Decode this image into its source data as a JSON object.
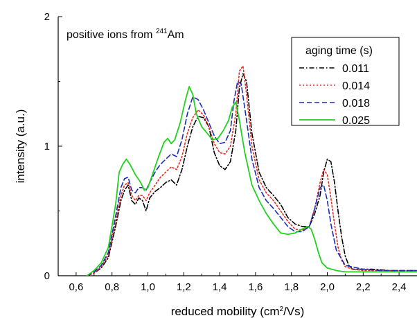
{
  "chart_data": {
    "type": "line",
    "title": "",
    "annotation": {
      "prefix": "positive ions from ",
      "superscript": "241",
      "suffix": "Am"
    },
    "xlabel": {
      "prefix": "reduced mobility (cm",
      "superscript": "2",
      "suffix": "/Vs)"
    },
    "ylabel": "intensity (a.u.)",
    "xlim": [
      0.5,
      2.5
    ],
    "ylim": [
      0,
      2
    ],
    "x_ticks": [
      0.6,
      0.8,
      1.0,
      1.2,
      1.4,
      1.6,
      1.8,
      2.0,
      2.2,
      2.4
    ],
    "x_tick_labels": [
      "0,6",
      "0,8",
      "1,0",
      "1,2",
      "1,4",
      "1,6",
      "1,8",
      "2,0",
      "2,2",
      "2,4"
    ],
    "y_ticks": [
      0,
      1,
      2
    ],
    "y_tick_labels": [
      "0",
      "1",
      "2"
    ],
    "grid": false,
    "legend": {
      "title": "aging time (s)",
      "placement": "top-right"
    },
    "series": [
      {
        "name": "0.011",
        "color": "#000000",
        "style": "dashdot",
        "x": [
          0.66,
          0.7,
          0.74,
          0.78,
          0.82,
          0.85,
          0.87,
          0.89,
          0.91,
          0.93,
          0.95,
          0.97,
          0.99,
          1.01,
          1.04,
          1.07,
          1.1,
          1.13,
          1.16,
          1.19,
          1.22,
          1.25,
          1.28,
          1.31,
          1.34,
          1.37,
          1.4,
          1.43,
          1.46,
          1.49,
          1.51,
          1.53,
          1.55,
          1.58,
          1.62,
          1.66,
          1.7,
          1.74,
          1.78,
          1.82,
          1.86,
          1.9,
          1.93,
          1.96,
          1.98,
          2.0,
          2.02,
          2.04,
          2.06,
          2.08,
          2.1,
          2.12,
          2.14,
          2.18,
          2.25,
          2.35,
          2.5
        ],
        "y": [
          0.0,
          0.02,
          0.06,
          0.14,
          0.38,
          0.58,
          0.66,
          0.7,
          0.58,
          0.55,
          0.6,
          0.58,
          0.5,
          0.6,
          0.65,
          0.68,
          0.72,
          0.74,
          0.7,
          0.82,
          1.0,
          1.15,
          1.23,
          1.22,
          1.15,
          0.95,
          0.85,
          0.82,
          0.88,
          1.12,
          1.45,
          1.56,
          1.5,
          1.1,
          0.8,
          0.68,
          0.62,
          0.55,
          0.45,
          0.4,
          0.38,
          0.38,
          0.48,
          0.62,
          0.8,
          0.9,
          0.88,
          0.72,
          0.5,
          0.3,
          0.15,
          0.08,
          0.05,
          0.05,
          0.05,
          0.04,
          0.04
        ]
      },
      {
        "name": "0.014",
        "color": "#e8281e",
        "style": "dotted",
        "x": [
          0.66,
          0.7,
          0.74,
          0.78,
          0.82,
          0.85,
          0.87,
          0.89,
          0.91,
          0.93,
          0.95,
          0.97,
          0.99,
          1.01,
          1.04,
          1.07,
          1.1,
          1.13,
          1.16,
          1.19,
          1.22,
          1.25,
          1.28,
          1.31,
          1.34,
          1.37,
          1.4,
          1.43,
          1.46,
          1.49,
          1.51,
          1.53,
          1.55,
          1.58,
          1.62,
          1.66,
          1.7,
          1.74,
          1.78,
          1.82,
          1.86,
          1.9,
          1.93,
          1.96,
          1.98,
          2.0,
          2.02,
          2.04,
          2.06,
          2.08,
          2.1,
          2.14,
          2.2,
          2.3,
          2.5
        ],
        "y": [
          0.0,
          0.02,
          0.07,
          0.16,
          0.42,
          0.62,
          0.7,
          0.72,
          0.62,
          0.58,
          0.62,
          0.62,
          0.58,
          0.64,
          0.7,
          0.76,
          0.8,
          0.84,
          0.82,
          0.92,
          1.1,
          1.22,
          1.28,
          1.24,
          1.15,
          1.02,
          0.95,
          0.94,
          1.0,
          1.25,
          1.58,
          1.62,
          1.4,
          1.0,
          0.74,
          0.64,
          0.58,
          0.5,
          0.42,
          0.36,
          0.35,
          0.38,
          0.52,
          0.72,
          0.82,
          0.78,
          0.6,
          0.4,
          0.22,
          0.12,
          0.07,
          0.05,
          0.04,
          0.04,
          0.04
        ]
      },
      {
        "name": "0.018",
        "color": "#1c2ab8",
        "style": "dashed",
        "x": [
          0.66,
          0.7,
          0.74,
          0.78,
          0.82,
          0.85,
          0.87,
          0.89,
          0.91,
          0.93,
          0.95,
          0.97,
          0.99,
          1.01,
          1.04,
          1.07,
          1.1,
          1.13,
          1.16,
          1.19,
          1.22,
          1.25,
          1.28,
          1.31,
          1.34,
          1.37,
          1.4,
          1.43,
          1.46,
          1.48,
          1.5,
          1.52,
          1.55,
          1.58,
          1.62,
          1.66,
          1.7,
          1.74,
          1.78,
          1.82,
          1.86,
          1.9,
          1.93,
          1.96,
          1.98,
          2.0,
          2.02,
          2.05,
          2.1,
          2.2,
          2.3,
          2.5
        ],
        "y": [
          0.0,
          0.03,
          0.08,
          0.18,
          0.46,
          0.68,
          0.75,
          0.76,
          0.66,
          0.64,
          0.68,
          0.68,
          0.66,
          0.72,
          0.8,
          0.86,
          0.9,
          0.94,
          0.92,
          1.05,
          1.25,
          1.38,
          1.36,
          1.28,
          1.18,
          1.08,
          1.02,
          1.03,
          1.12,
          1.35,
          1.5,
          1.48,
          1.2,
          0.9,
          0.68,
          0.58,
          0.52,
          0.45,
          0.38,
          0.34,
          0.34,
          0.38,
          0.52,
          0.68,
          0.7,
          0.58,
          0.4,
          0.2,
          0.08,
          0.05,
          0.04,
          0.04
        ]
      },
      {
        "name": "0.025",
        "color": "#22d11e",
        "style": "solid",
        "x": [
          0.66,
          0.7,
          0.74,
          0.78,
          0.82,
          0.84,
          0.86,
          0.88,
          0.9,
          0.93,
          0.96,
          0.98,
          1.0,
          1.03,
          1.06,
          1.09,
          1.11,
          1.13,
          1.15,
          1.18,
          1.21,
          1.23,
          1.25,
          1.27,
          1.3,
          1.33,
          1.36,
          1.39,
          1.42,
          1.45,
          1.47,
          1.49,
          1.51,
          1.54,
          1.58,
          1.62,
          1.66,
          1.7,
          1.74,
          1.78,
          1.82,
          1.86,
          1.89,
          1.91,
          1.93,
          1.95,
          1.97,
          2.0,
          2.05,
          2.1,
          2.2,
          2.3,
          2.5
        ],
        "y": [
          0.0,
          0.04,
          0.1,
          0.22,
          0.55,
          0.8,
          0.86,
          0.9,
          0.86,
          0.78,
          0.72,
          0.66,
          0.68,
          0.8,
          0.92,
          1.03,
          1.06,
          1.02,
          1.05,
          1.18,
          1.36,
          1.46,
          1.4,
          1.25,
          1.15,
          1.1,
          1.05,
          1.06,
          1.12,
          1.2,
          1.3,
          1.34,
          1.2,
          0.95,
          0.7,
          0.58,
          0.48,
          0.4,
          0.33,
          0.32,
          0.33,
          0.36,
          0.38,
          0.36,
          0.28,
          0.18,
          0.1,
          0.06,
          0.04,
          0.03,
          0.03,
          0.03,
          0.03
        ]
      }
    ]
  }
}
